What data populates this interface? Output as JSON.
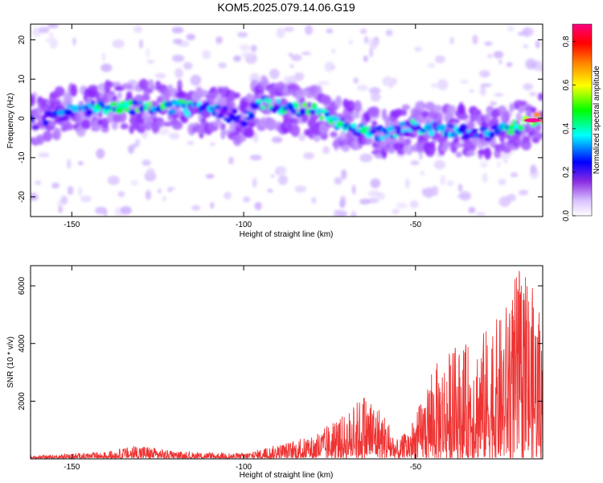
{
  "figure": {
    "title": "KOM5.2025.079.14.06.G19"
  },
  "chart_data": [
    {
      "type": "heatmap",
      "xlabel": "Height of straight line (km)",
      "ylabel": "Frequency (Hz)",
      "xlim": [
        -162,
        -13
      ],
      "ylim": [
        -25,
        24
      ],
      "xticks": [
        -150,
        -100,
        -50
      ],
      "yticks": [
        -20,
        -10,
        0,
        10,
        20
      ],
      "colorbar": {
        "label": "Normalized spectral amplitude",
        "range": [
          0,
          0.88
        ],
        "ticks": [
          0.0,
          0.2,
          0.4,
          0.6,
          0.8
        ],
        "colormap": [
          "#ffffff",
          "#c8a8ff",
          "#7a00ff",
          "#0000ff",
          "#00ffff",
          "#00ff00",
          "#ffff00",
          "#ff8000",
          "#ff0000",
          "#ff00a0"
        ]
      },
      "ridge": {
        "x": [
          -160,
          -150,
          -140,
          -130,
          -120,
          -110,
          -100,
          -95,
          -90,
          -80,
          -70,
          -60,
          -50,
          -40,
          -30,
          -20,
          -13
        ],
        "frequency": [
          -1,
          2,
          3,
          3,
          3,
          2,
          0,
          4,
          3,
          2,
          -2,
          -4,
          -2,
          -3,
          -4,
          -2,
          0
        ],
        "peak_amplitude": [
          0.3,
          0.4,
          0.5,
          0.55,
          0.5,
          0.45,
          0.35,
          0.45,
          0.5,
          0.55,
          0.5,
          0.45,
          0.45,
          0.4,
          0.45,
          0.5,
          0.88
        ]
      }
    },
    {
      "type": "line",
      "xlabel": "Height of straight line (km)",
      "ylabel": "SNR (10 * v/v)",
      "xlim": [
        -162,
        -13
      ],
      "ylim": [
        0,
        6700
      ],
      "xticks": [
        -150,
        -100,
        -50
      ],
      "yticks": [
        2000,
        4000,
        6000
      ],
      "color": "#ee3333",
      "envelope": {
        "x": [
          -162,
          -140,
          -130,
          -120,
          -100,
          -90,
          -80,
          -75,
          -70,
          -65,
          -60,
          -55,
          -50,
          -45,
          -40,
          -35,
          -30,
          -25,
          -20,
          -15,
          -13
        ],
        "y": [
          100,
          250,
          500,
          250,
          200,
          500,
          800,
          1200,
          1600,
          2300,
          1800,
          600,
          1500,
          3200,
          3800,
          4000,
          4500,
          5000,
          6700,
          5800,
          4300
        ]
      }
    }
  ]
}
